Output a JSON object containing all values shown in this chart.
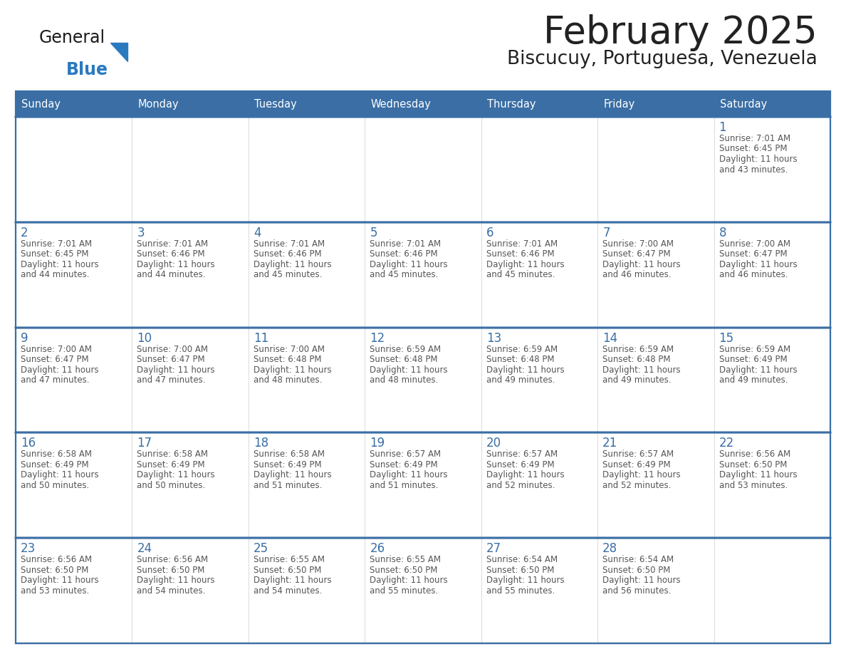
{
  "title": "February 2025",
  "subtitle": "Biscucuy, Portuguesa, Venezuela",
  "days_of_week": [
    "Sunday",
    "Monday",
    "Tuesday",
    "Wednesday",
    "Thursday",
    "Friday",
    "Saturday"
  ],
  "header_bg": "#3a6ea5",
  "header_text": "#ffffff",
  "cell_bg": "#ffffff",
  "border_color": "#3a6ea5",
  "day_num_color": "#3a6ea5",
  "text_color": "#555555",
  "title_color": "#222222",
  "logo_general_color": "#1a1a1a",
  "logo_blue_color": "#2a7abf",
  "row_separator_color": "#3a6ea5",
  "calendar_data": [
    [
      {
        "day": "",
        "sunrise": "",
        "sunset": "",
        "daylight_line1": "",
        "daylight_line2": ""
      },
      {
        "day": "",
        "sunrise": "",
        "sunset": "",
        "daylight_line1": "",
        "daylight_line2": ""
      },
      {
        "day": "",
        "sunrise": "",
        "sunset": "",
        "daylight_line1": "",
        "daylight_line2": ""
      },
      {
        "day": "",
        "sunrise": "",
        "sunset": "",
        "daylight_line1": "",
        "daylight_line2": ""
      },
      {
        "day": "",
        "sunrise": "",
        "sunset": "",
        "daylight_line1": "",
        "daylight_line2": ""
      },
      {
        "day": "",
        "sunrise": "",
        "sunset": "",
        "daylight_line1": "",
        "daylight_line2": ""
      },
      {
        "day": "1",
        "sunrise": "7:01 AM",
        "sunset": "6:45 PM",
        "daylight_line1": "Daylight: 11 hours",
        "daylight_line2": "and 43 minutes."
      }
    ],
    [
      {
        "day": "2",
        "sunrise": "7:01 AM",
        "sunset": "6:45 PM",
        "daylight_line1": "Daylight: 11 hours",
        "daylight_line2": "and 44 minutes."
      },
      {
        "day": "3",
        "sunrise": "7:01 AM",
        "sunset": "6:46 PM",
        "daylight_line1": "Daylight: 11 hours",
        "daylight_line2": "and 44 minutes."
      },
      {
        "day": "4",
        "sunrise": "7:01 AM",
        "sunset": "6:46 PM",
        "daylight_line1": "Daylight: 11 hours",
        "daylight_line2": "and 45 minutes."
      },
      {
        "day": "5",
        "sunrise": "7:01 AM",
        "sunset": "6:46 PM",
        "daylight_line1": "Daylight: 11 hours",
        "daylight_line2": "and 45 minutes."
      },
      {
        "day": "6",
        "sunrise": "7:01 AM",
        "sunset": "6:46 PM",
        "daylight_line1": "Daylight: 11 hours",
        "daylight_line2": "and 45 minutes."
      },
      {
        "day": "7",
        "sunrise": "7:00 AM",
        "sunset": "6:47 PM",
        "daylight_line1": "Daylight: 11 hours",
        "daylight_line2": "and 46 minutes."
      },
      {
        "day": "8",
        "sunrise": "7:00 AM",
        "sunset": "6:47 PM",
        "daylight_line1": "Daylight: 11 hours",
        "daylight_line2": "and 46 minutes."
      }
    ],
    [
      {
        "day": "9",
        "sunrise": "7:00 AM",
        "sunset": "6:47 PM",
        "daylight_line1": "Daylight: 11 hours",
        "daylight_line2": "and 47 minutes."
      },
      {
        "day": "10",
        "sunrise": "7:00 AM",
        "sunset": "6:47 PM",
        "daylight_line1": "Daylight: 11 hours",
        "daylight_line2": "and 47 minutes."
      },
      {
        "day": "11",
        "sunrise": "7:00 AM",
        "sunset": "6:48 PM",
        "daylight_line1": "Daylight: 11 hours",
        "daylight_line2": "and 48 minutes."
      },
      {
        "day": "12",
        "sunrise": "6:59 AM",
        "sunset": "6:48 PM",
        "daylight_line1": "Daylight: 11 hours",
        "daylight_line2": "and 48 minutes."
      },
      {
        "day": "13",
        "sunrise": "6:59 AM",
        "sunset": "6:48 PM",
        "daylight_line1": "Daylight: 11 hours",
        "daylight_line2": "and 49 minutes."
      },
      {
        "day": "14",
        "sunrise": "6:59 AM",
        "sunset": "6:48 PM",
        "daylight_line1": "Daylight: 11 hours",
        "daylight_line2": "and 49 minutes."
      },
      {
        "day": "15",
        "sunrise": "6:59 AM",
        "sunset": "6:49 PM",
        "daylight_line1": "Daylight: 11 hours",
        "daylight_line2": "and 49 minutes."
      }
    ],
    [
      {
        "day": "16",
        "sunrise": "6:58 AM",
        "sunset": "6:49 PM",
        "daylight_line1": "Daylight: 11 hours",
        "daylight_line2": "and 50 minutes."
      },
      {
        "day": "17",
        "sunrise": "6:58 AM",
        "sunset": "6:49 PM",
        "daylight_line1": "Daylight: 11 hours",
        "daylight_line2": "and 50 minutes."
      },
      {
        "day": "18",
        "sunrise": "6:58 AM",
        "sunset": "6:49 PM",
        "daylight_line1": "Daylight: 11 hours",
        "daylight_line2": "and 51 minutes."
      },
      {
        "day": "19",
        "sunrise": "6:57 AM",
        "sunset": "6:49 PM",
        "daylight_line1": "Daylight: 11 hours",
        "daylight_line2": "and 51 minutes."
      },
      {
        "day": "20",
        "sunrise": "6:57 AM",
        "sunset": "6:49 PM",
        "daylight_line1": "Daylight: 11 hours",
        "daylight_line2": "and 52 minutes."
      },
      {
        "day": "21",
        "sunrise": "6:57 AM",
        "sunset": "6:49 PM",
        "daylight_line1": "Daylight: 11 hours",
        "daylight_line2": "and 52 minutes."
      },
      {
        "day": "22",
        "sunrise": "6:56 AM",
        "sunset": "6:50 PM",
        "daylight_line1": "Daylight: 11 hours",
        "daylight_line2": "and 53 minutes."
      }
    ],
    [
      {
        "day": "23",
        "sunrise": "6:56 AM",
        "sunset": "6:50 PM",
        "daylight_line1": "Daylight: 11 hours",
        "daylight_line2": "and 53 minutes."
      },
      {
        "day": "24",
        "sunrise": "6:56 AM",
        "sunset": "6:50 PM",
        "daylight_line1": "Daylight: 11 hours",
        "daylight_line2": "and 54 minutes."
      },
      {
        "day": "25",
        "sunrise": "6:55 AM",
        "sunset": "6:50 PM",
        "daylight_line1": "Daylight: 11 hours",
        "daylight_line2": "and 54 minutes."
      },
      {
        "day": "26",
        "sunrise": "6:55 AM",
        "sunset": "6:50 PM",
        "daylight_line1": "Daylight: 11 hours",
        "daylight_line2": "and 55 minutes."
      },
      {
        "day": "27",
        "sunrise": "6:54 AM",
        "sunset": "6:50 PM",
        "daylight_line1": "Daylight: 11 hours",
        "daylight_line2": "and 55 minutes."
      },
      {
        "day": "28",
        "sunrise": "6:54 AM",
        "sunset": "6:50 PM",
        "daylight_line1": "Daylight: 11 hours",
        "daylight_line2": "and 56 minutes."
      },
      {
        "day": "",
        "sunrise": "",
        "sunset": "",
        "daylight_line1": "",
        "daylight_line2": ""
      }
    ]
  ]
}
